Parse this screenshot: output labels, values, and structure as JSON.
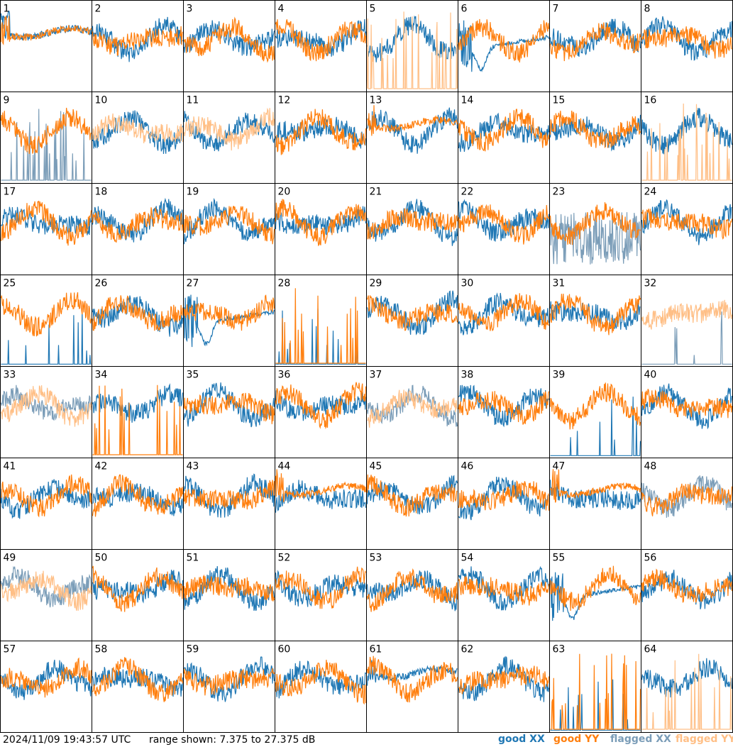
{
  "timestamp": "2024/11/09 19:43:57 UTC",
  "range_text": "range shown: 7.375 to 27.375 dB",
  "legend": [
    {
      "label": "good XX",
      "color": "#1f77b4"
    },
    {
      "label": "good YY",
      "color": "#ff7f0e"
    },
    {
      "label": "flagged XX",
      "color": "#7b9db8"
    },
    {
      "label": "flagged YY",
      "color": "#ffbf86"
    }
  ],
  "chart_data": {
    "type": "line",
    "layout": "small-multiples 8x8",
    "y_range_db": [
      7.375,
      27.375
    ],
    "panels": [
      {
        "id": "1",
        "xx": "good",
        "yy": "good",
        "xx_shape": "flat",
        "yy_shape": "flat"
      },
      {
        "id": "2",
        "xx": "good",
        "yy": "good",
        "xx_shape": "normal",
        "yy_shape": "normal"
      },
      {
        "id": "3",
        "xx": "good",
        "yy": "good",
        "xx_shape": "normal",
        "yy_shape": "normal"
      },
      {
        "id": "4",
        "xx": "good",
        "yy": "good",
        "xx_shape": "normal",
        "yy_shape": "normal"
      },
      {
        "id": "5",
        "xx": "good",
        "yy": "flagged",
        "xx_shape": "normal",
        "yy_shape": "spiky"
      },
      {
        "id": "6",
        "xx": "good",
        "yy": "good",
        "xx_shape": "dip",
        "yy_shape": "normal"
      },
      {
        "id": "7",
        "xx": "good",
        "yy": "good",
        "xx_shape": "normal",
        "yy_shape": "normal"
      },
      {
        "id": "8",
        "xx": "good",
        "yy": "good",
        "xx_shape": "normal",
        "yy_shape": "normal"
      },
      {
        "id": "9",
        "xx": "flagged",
        "yy": "good",
        "xx_shape": "spiky",
        "yy_shape": "normal"
      },
      {
        "id": "10",
        "xx": "good",
        "yy": "flagged",
        "xx_shape": "normal",
        "yy_shape": "normal"
      },
      {
        "id": "11",
        "xx": "good",
        "yy": "flagged",
        "xx_shape": "normal",
        "yy_shape": "normal"
      },
      {
        "id": "12",
        "xx": "good",
        "yy": "good",
        "xx_shape": "normal",
        "yy_shape": "normal"
      },
      {
        "id": "13",
        "xx": "good",
        "yy": "good",
        "xx_shape": "normal",
        "yy_shape": "flat"
      },
      {
        "id": "14",
        "xx": "good",
        "yy": "good",
        "xx_shape": "normal",
        "yy_shape": "normal"
      },
      {
        "id": "15",
        "xx": "good",
        "yy": "good",
        "xx_shape": "normal",
        "yy_shape": "normal"
      },
      {
        "id": "16",
        "xx": "good",
        "yy": "flagged",
        "xx_shape": "normal",
        "yy_shape": "spiky"
      },
      {
        "id": "17",
        "xx": "good",
        "yy": "good",
        "xx_shape": "normal",
        "yy_shape": "normal"
      },
      {
        "id": "18",
        "xx": "good",
        "yy": "good",
        "xx_shape": "normal",
        "yy_shape": "normal"
      },
      {
        "id": "19",
        "xx": "good",
        "yy": "good",
        "xx_shape": "normal",
        "yy_shape": "normal"
      },
      {
        "id": "20",
        "xx": "good",
        "yy": "good",
        "xx_shape": "normal",
        "yy_shape": "normal"
      },
      {
        "id": "21",
        "xx": "good",
        "yy": "good",
        "xx_shape": "normal",
        "yy_shape": "normal"
      },
      {
        "id": "22",
        "xx": "good",
        "yy": "good",
        "xx_shape": "normal",
        "yy_shape": "normal"
      },
      {
        "id": "23",
        "xx": "flagged",
        "yy": "good",
        "xx_shape": "noisy",
        "yy_shape": "normal"
      },
      {
        "id": "24",
        "xx": "good",
        "yy": "good",
        "xx_shape": "normal",
        "yy_shape": "normal"
      },
      {
        "id": "25",
        "xx": "good",
        "yy": "good",
        "xx_shape": "sparse",
        "yy_shape": "normal"
      },
      {
        "id": "26",
        "xx": "good",
        "yy": "good",
        "xx_shape": "normal",
        "yy_shape": "normal"
      },
      {
        "id": "27",
        "xx": "good",
        "yy": "good",
        "xx_shape": "dip",
        "yy_shape": "normal"
      },
      {
        "id": "28",
        "xx": "good",
        "yy": "good",
        "xx_shape": "sparse",
        "yy_shape": "spiky"
      },
      {
        "id": "29",
        "xx": "good",
        "yy": "good",
        "xx_shape": "normal",
        "yy_shape": "normal"
      },
      {
        "id": "30",
        "xx": "good",
        "yy": "good",
        "xx_shape": "normal",
        "yy_shape": "normal"
      },
      {
        "id": "31",
        "xx": "good",
        "yy": "good",
        "xx_shape": "normal",
        "yy_shape": "normal"
      },
      {
        "id": "32",
        "xx": "flagged",
        "yy": "flagged",
        "xx_shape": "sparse",
        "yy_shape": "normal"
      },
      {
        "id": "33",
        "xx": "flagged",
        "yy": "flagged",
        "xx_shape": "normal",
        "yy_shape": "normal"
      },
      {
        "id": "34",
        "xx": "good",
        "yy": "good",
        "xx_shape": "normal",
        "yy_shape": "spiky"
      },
      {
        "id": "35",
        "xx": "good",
        "yy": "good",
        "xx_shape": "normal",
        "yy_shape": "normal"
      },
      {
        "id": "36",
        "xx": "good",
        "yy": "good",
        "xx_shape": "normal",
        "yy_shape": "normal"
      },
      {
        "id": "37",
        "xx": "flagged",
        "yy": "flagged",
        "xx_shape": "normal",
        "yy_shape": "normal"
      },
      {
        "id": "38",
        "xx": "good",
        "yy": "good",
        "xx_shape": "normal",
        "yy_shape": "normal"
      },
      {
        "id": "39",
        "xx": "good",
        "yy": "good",
        "xx_shape": "sparse",
        "yy_shape": "normal"
      },
      {
        "id": "40",
        "xx": "good",
        "yy": "good",
        "xx_shape": "normal",
        "yy_shape": "normal"
      },
      {
        "id": "41",
        "xx": "good",
        "yy": "good",
        "xx_shape": "normal",
        "yy_shape": "normal"
      },
      {
        "id": "42",
        "xx": "good",
        "yy": "good",
        "xx_shape": "normal",
        "yy_shape": "normal"
      },
      {
        "id": "43",
        "xx": "good",
        "yy": "good",
        "xx_shape": "normal",
        "yy_shape": "normal"
      },
      {
        "id": "44",
        "xx": "good",
        "yy": "good",
        "xx_shape": "normal",
        "yy_shape": "flat"
      },
      {
        "id": "45",
        "xx": "good",
        "yy": "good",
        "xx_shape": "normal",
        "yy_shape": "normal"
      },
      {
        "id": "46",
        "xx": "good",
        "yy": "good",
        "xx_shape": "normal",
        "yy_shape": "normal"
      },
      {
        "id": "47",
        "xx": "good",
        "yy": "good",
        "xx_shape": "normal",
        "yy_shape": "flat"
      },
      {
        "id": "48",
        "xx": "flagged",
        "yy": "good",
        "xx_shape": "normal",
        "yy_shape": "normal"
      },
      {
        "id": "49",
        "xx": "flagged",
        "yy": "flagged",
        "xx_shape": "normal",
        "yy_shape": "normal"
      },
      {
        "id": "50",
        "xx": "good",
        "yy": "good",
        "xx_shape": "normal",
        "yy_shape": "normal"
      },
      {
        "id": "51",
        "xx": "good",
        "yy": "good",
        "xx_shape": "normal",
        "yy_shape": "normal"
      },
      {
        "id": "52",
        "xx": "good",
        "yy": "good",
        "xx_shape": "normal",
        "yy_shape": "normal"
      },
      {
        "id": "53",
        "xx": "good",
        "yy": "good",
        "xx_shape": "normal",
        "yy_shape": "normal"
      },
      {
        "id": "54",
        "xx": "good",
        "yy": "good",
        "xx_shape": "normal",
        "yy_shape": "normal"
      },
      {
        "id": "55",
        "xx": "good",
        "yy": "good",
        "xx_shape": "dip",
        "yy_shape": "normal"
      },
      {
        "id": "56",
        "xx": "good",
        "yy": "good",
        "xx_shape": "normal",
        "yy_shape": "normal"
      },
      {
        "id": "57",
        "xx": "good",
        "yy": "good",
        "xx_shape": "normal",
        "yy_shape": "normal"
      },
      {
        "id": "58",
        "xx": "good",
        "yy": "good",
        "xx_shape": "normal",
        "yy_shape": "normal"
      },
      {
        "id": "59",
        "xx": "good",
        "yy": "good",
        "xx_shape": "normal",
        "yy_shape": "normal"
      },
      {
        "id": "60",
        "xx": "good",
        "yy": "good",
        "xx_shape": "normal",
        "yy_shape": "normal"
      },
      {
        "id": "61",
        "xx": "good",
        "yy": "good",
        "xx_shape": "flat",
        "yy_shape": "normal"
      },
      {
        "id": "62",
        "xx": "good",
        "yy": "good",
        "xx_shape": "normal",
        "yy_shape": "normal"
      },
      {
        "id": "63",
        "xx": "good",
        "yy": "good",
        "xx_shape": "sparse",
        "yy_shape": "spiky"
      },
      {
        "id": "64",
        "xx": "good",
        "yy": "flagged",
        "xx_shape": "normal",
        "yy_shape": "spiky"
      }
    ]
  }
}
